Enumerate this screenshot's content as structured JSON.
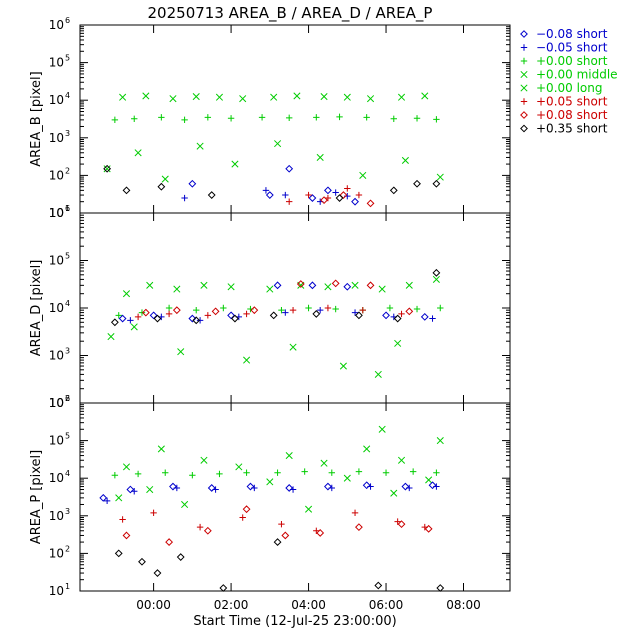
{
  "chart_data": {
    "type": "scatter",
    "title": "20250713 AREA_B / AREA_D / AREA_P",
    "xlabel": "Start Time (12-Jul-25 23:00:00)",
    "x_ticks": [
      "00:00",
      "02:00",
      "04:00",
      "06:00",
      "08:00"
    ],
    "x_tick_hours": [
      1,
      3,
      5,
      7,
      9
    ],
    "xlim_hours_since_start": [
      -0.9,
      10.2
    ],
    "yscale": "log",
    "legend_placement": "right-outside-top",
    "legend": [
      {
        "marker": "diamond",
        "label": "−0.08 short",
        "color": "#0000cc"
      },
      {
        "marker": "plus",
        "label": "−0.05 short",
        "color": "#0000cc"
      },
      {
        "marker": "plus",
        "label": "+0.00 short",
        "color": "#00cc00"
      },
      {
        "marker": "x",
        "label": "+0.00 middle",
        "color": "#00cc00"
      },
      {
        "marker": "x",
        "label": "+0.00 long",
        "color": "#00cc00"
      },
      {
        "marker": "plus",
        "label": "+0.05 short",
        "color": "#cc0000"
      },
      {
        "marker": "diamond",
        "label": "+0.08 short",
        "color": "#cc0000"
      },
      {
        "marker": "diamond",
        "label": "+0.35 short",
        "color": "#000000"
      }
    ],
    "panels": [
      {
        "ylabel": "AREA_B [pixel]",
        "ylim": [
          10,
          1000000
        ],
        "y_ticks": [
          "10^1",
          "10^2",
          "10^3",
          "10^4",
          "10^5",
          "10^6"
        ],
        "series": [
          {
            "label_index": 2,
            "x": [
              0.0,
              0.5,
              1.2,
              1.8,
              2.4,
              3.0,
              3.8,
              4.5,
              5.2,
              5.8,
              6.5,
              7.2,
              7.8,
              8.3
            ],
            "y": [
              3000,
              3200,
              3500,
              3000,
              3500,
              3300,
              3500,
              3400,
              3500,
              3600,
              3500,
              3200,
              3300,
              3100
            ]
          },
          {
            "label_index": 3,
            "x": [
              0.2,
              0.8,
              1.5,
              2.1,
              2.7,
              3.3,
              4.1,
              4.7,
              5.4,
              6.0,
              6.6,
              7.4,
              8.0
            ],
            "y": [
              12000,
              13000,
              11000,
              12500,
              12000,
              11000,
              12000,
              13000,
              12500,
              12000,
              11000,
              12000,
              13000
            ]
          },
          {
            "label_index": 4,
            "x": [
              -0.2,
              0.6,
              1.3,
              2.2,
              3.1,
              4.2,
              5.3,
              6.4,
              7.5,
              8.4
            ],
            "y": [
              150,
              400,
              80,
              600,
              200,
              700,
              300,
              100,
              250,
              90
            ]
          },
          {
            "label_index": 0,
            "x": [
              2.0,
              4.0,
              4.5,
              5.1,
              5.5,
              6.2
            ],
            "y": [
              60,
              30,
              150,
              25,
              40,
              20
            ]
          },
          {
            "label_index": 1,
            "x": [
              1.8,
              3.9,
              4.4,
              5.3,
              5.7,
              6.0
            ],
            "y": [
              25,
              40,
              30,
              20,
              35,
              28
            ]
          },
          {
            "label_index": 5,
            "x": [
              4.5,
              5.0,
              5.5,
              6.0,
              6.3
            ],
            "y": [
              20,
              30,
              25,
              45,
              30
            ]
          },
          {
            "label_index": 6,
            "x": [
              5.4,
              5.9,
              6.6
            ],
            "y": [
              22,
              30,
              18
            ]
          },
          {
            "label_index": 7,
            "x": [
              -0.2,
              0.3,
              1.2,
              2.5,
              5.8,
              7.2,
              7.8,
              8.3
            ],
            "y": [
              150,
              40,
              50,
              30,
              25,
              40,
              60,
              60
            ]
          }
        ]
      },
      {
        "ylabel": "AREA_D [pixel]",
        "ylim": [
          100,
          1000000
        ],
        "y_ticks": [
          "10^2",
          "10^3",
          "10^4",
          "10^5",
          "10^6"
        ],
        "series": [
          {
            "label_index": 2,
            "x": [
              0.1,
              0.7,
              1.4,
              2.1,
              2.8,
              3.5,
              4.3,
              5.0,
              5.7,
              6.4,
              7.1,
              7.8,
              8.4
            ],
            "y": [
              7000,
              8000,
              10000,
              9000,
              10000,
              9500,
              9000,
              10000,
              9500,
              9000,
              10000,
              9500,
              10000
            ]
          },
          {
            "label_index": 3,
            "x": [
              0.3,
              0.9,
              1.6,
              2.3,
              3.0,
              4.0,
              4.8,
              5.5,
              6.2,
              6.9,
              7.6,
              8.3
            ],
            "y": [
              20000,
              30000,
              25000,
              30000,
              28000,
              25000,
              30000,
              28000,
              30000,
              25000,
              30000,
              40000
            ]
          },
          {
            "label_index": 4,
            "x": [
              -0.1,
              0.5,
              1.7,
              3.4,
              4.6,
              5.9,
              6.8,
              7.3
            ],
            "y": [
              2500,
              4000,
              1200,
              800,
              1500,
              600,
              400,
              1800
            ]
          },
          {
            "label_index": 0,
            "x": [
              0.2,
              1.0,
              2.0,
              3.0,
              4.2,
              5.1,
              6.0,
              7.0,
              8.0
            ],
            "y": [
              6000,
              7000,
              6000,
              7000,
              30000,
              30000,
              28000,
              7000,
              6500
            ]
          },
          {
            "label_index": 1,
            "x": [
              0.4,
              1.2,
              2.2,
              3.2,
              4.4,
              5.3,
              6.2,
              7.2,
              8.2
            ],
            "y": [
              5500,
              6500,
              5500,
              6500,
              8000,
              9000,
              8000,
              6500,
              6000
            ]
          },
          {
            "label_index": 5,
            "x": [
              0.6,
              1.4,
              2.4,
              3.4,
              4.6,
              5.5,
              6.4,
              7.4
            ],
            "y": [
              6500,
              7500,
              7000,
              7500,
              9000,
              10000,
              9000,
              7500
            ]
          },
          {
            "label_index": 6,
            "x": [
              0.8,
              1.6,
              2.6,
              3.6,
              4.8,
              5.7,
              6.6,
              7.6
            ],
            "y": [
              8000,
              9000,
              8500,
              9000,
              32000,
              33000,
              30000,
              8500
            ]
          },
          {
            "label_index": 7,
            "x": [
              0.0,
              1.1,
              2.1,
              3.1,
              4.1,
              5.2,
              6.3,
              7.3,
              8.3
            ],
            "y": [
              5000,
              6000,
              5500,
              6000,
              7000,
              7500,
              7000,
              6000,
              55000
            ]
          }
        ]
      },
      {
        "ylabel": "AREA_P [pixel]",
        "ylim": [
          10,
          1000000
        ],
        "y_ticks": [
          "10^1",
          "10^2",
          "10^3",
          "10^4",
          "10^5",
          "10^6"
        ],
        "series": [
          {
            "label_index": 2,
            "x": [
              0.0,
              0.6,
              1.3,
              2.0,
              2.7,
              3.4,
              4.2,
              4.9,
              5.6,
              6.3,
              7.0,
              7.7,
              8.3
            ],
            "y": [
              12000,
              13000,
              14000,
              12000,
              13000,
              14000,
              14000,
              15000,
              14000,
              15000,
              14000,
              15000,
              14000
            ]
          },
          {
            "label_index": 3,
            "x": [
              0.3,
              1.2,
              2.3,
              3.2,
              4.5,
              5.4,
              6.5,
              6.9,
              7.4,
              8.4
            ],
            "y": [
              20000,
              60000,
              30000,
              20000,
              40000,
              25000,
              60000,
              200000,
              30000,
              100000
            ]
          },
          {
            "label_index": 4,
            "x": [
              0.1,
              0.9,
              1.8,
              4.0,
              5.0,
              6.0,
              7.2,
              8.1
            ],
            "y": [
              3000,
              5000,
              2000,
              8000,
              1500,
              10000,
              4000,
              9000
            ]
          },
          {
            "label_index": 0,
            "x": [
              -0.3,
              0.4,
              1.5,
              2.5,
              3.5,
              4.5,
              5.5,
              6.5,
              7.5,
              8.2
            ],
            "y": [
              3000,
              5000,
              6000,
              5500,
              6000,
              5500,
              6000,
              6500,
              6000,
              6500
            ]
          },
          {
            "label_index": 1,
            "x": [
              -0.2,
              0.5,
              1.6,
              2.6,
              3.6,
              4.6,
              5.6,
              6.6,
              7.6,
              8.3
            ],
            "y": [
              2500,
              4500,
              5500,
              5000,
              5500,
              5000,
              5500,
              6000,
              5500,
              6000
            ]
          },
          {
            "label_index": 5,
            "x": [
              0.2,
              1.0,
              2.2,
              3.3,
              4.3,
              5.2,
              6.2,
              7.3,
              8.0
            ],
            "y": [
              800,
              1200,
              500,
              900,
              600,
              400,
              1200,
              700,
              500
            ]
          },
          {
            "label_index": 6,
            "x": [
              0.3,
              1.4,
              2.4,
              3.4,
              4.4,
              5.3,
              6.3,
              7.4,
              8.1
            ],
            "y": [
              300,
              200,
              400,
              1500,
              300,
              350,
              500,
              600,
              450
            ]
          },
          {
            "label_index": 7,
            "x": [
              0.1,
              0.7,
              1.1,
              1.7,
              2.8,
              4.2,
              6.8,
              8.4
            ],
            "y": [
              100,
              60,
              30,
              80,
              12,
              200,
              14,
              12
            ]
          }
        ]
      }
    ]
  },
  "colors": {
    "blue": "#0000cc",
    "green": "#00cc00",
    "red": "#cc0000",
    "black": "#000000"
  }
}
